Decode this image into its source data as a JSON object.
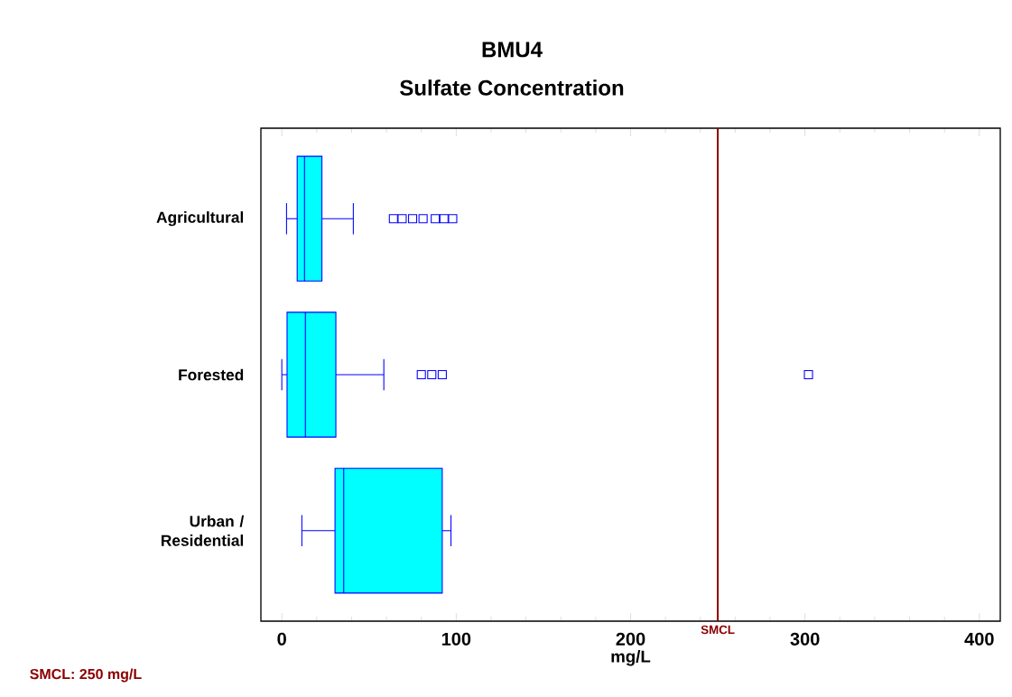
{
  "chart_data": {
    "type": "box",
    "title": "BMU4",
    "subtitle": "Sulfate Concentration",
    "xlabel": "mg/L",
    "orientation": "horizontal",
    "categories": [
      "Agricultural",
      "Forested",
      "Urban / Residential"
    ],
    "color": "#00ffff",
    "boxes": [
      {
        "low": 2.7,
        "q1": 8.8,
        "median": 13,
        "q3": 23,
        "high": 41,
        "outliers": [
          64,
          69,
          75,
          81,
          88,
          93,
          98
        ]
      },
      {
        "low": 0,
        "q1": 3,
        "median": 13.5,
        "q3": 31,
        "high": 58.5,
        "outliers": [
          80,
          86,
          92,
          302
        ]
      },
      {
        "low": 11.5,
        "q1": 30.5,
        "median": 35.5,
        "q3": 92,
        "high": 97
      }
    ],
    "xlim": [
      -12,
      412
    ],
    "xticks": [
      0,
      100,
      200,
      300,
      400
    ],
    "ref_lines": [
      {
        "axis": "x",
        "value": 250,
        "label": "SMCL",
        "color": "#8b0000"
      }
    ],
    "annotations": [
      "SMCL:  250 mg/L"
    ]
  }
}
